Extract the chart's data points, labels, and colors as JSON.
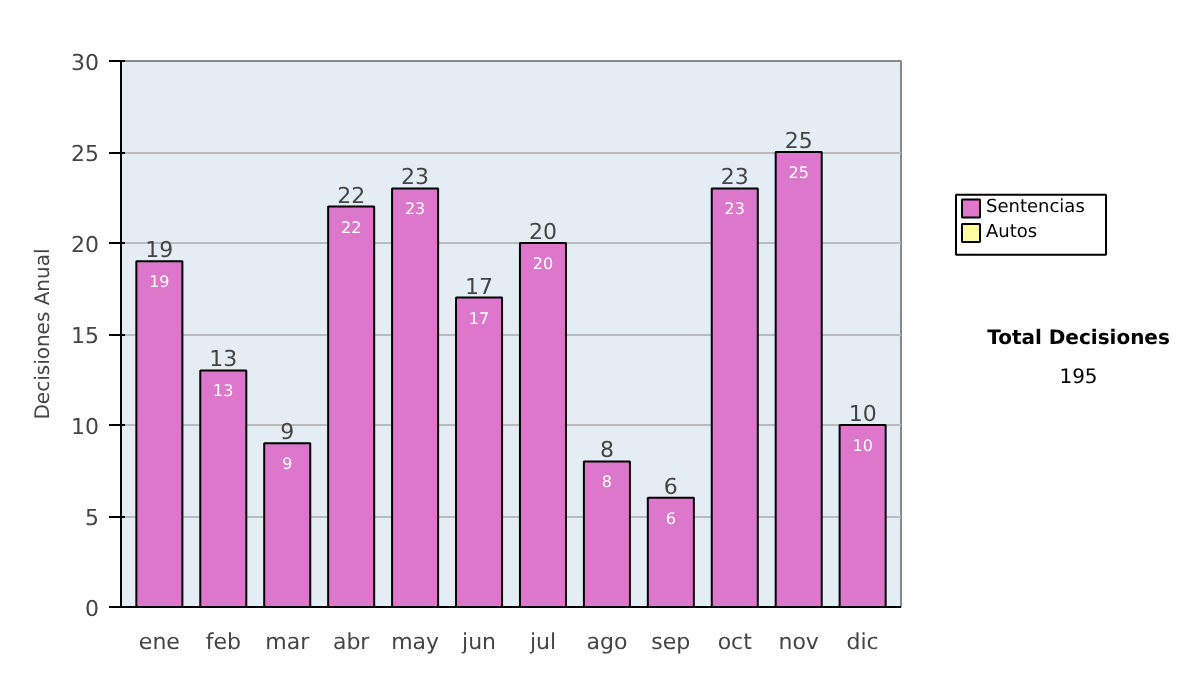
{
  "chart_data": {
    "type": "bar",
    "stacked": true,
    "ylabel": "Decisiones Anual",
    "categories": [
      "ene",
      "feb",
      "mar",
      "abr",
      "may",
      "jun",
      "jul",
      "ago",
      "sep",
      "oct",
      "nov",
      "dic"
    ],
    "series": [
      {
        "name": "Sentencias",
        "color": "#dd77cc",
        "values": [
          19,
          13,
          9,
          22,
          23,
          17,
          20,
          8,
          6,
          23,
          25,
          10
        ],
        "value_labels": [
          "19",
          "13",
          "9",
          "22",
          "23",
          "17",
          "20",
          "8",
          "6",
          "23",
          "25",
          "10"
        ]
      },
      {
        "name": "Autos",
        "color": "#ffffa0",
        "values": [
          0,
          0,
          0,
          0,
          0,
          0,
          0,
          0,
          0,
          0,
          0,
          0
        ]
      }
    ],
    "totals": [
      "19",
      "13",
      "9",
      "22",
      "23",
      "17",
      "20",
      "8",
      "6",
      "23",
      "25",
      "10"
    ],
    "ylim": [
      0,
      30
    ],
    "yticks": [
      0,
      5,
      10,
      15,
      20,
      25,
      30
    ],
    "grid": "y",
    "legend": "right",
    "annotations": [
      "Total Decisiones",
      "195"
    ]
  }
}
